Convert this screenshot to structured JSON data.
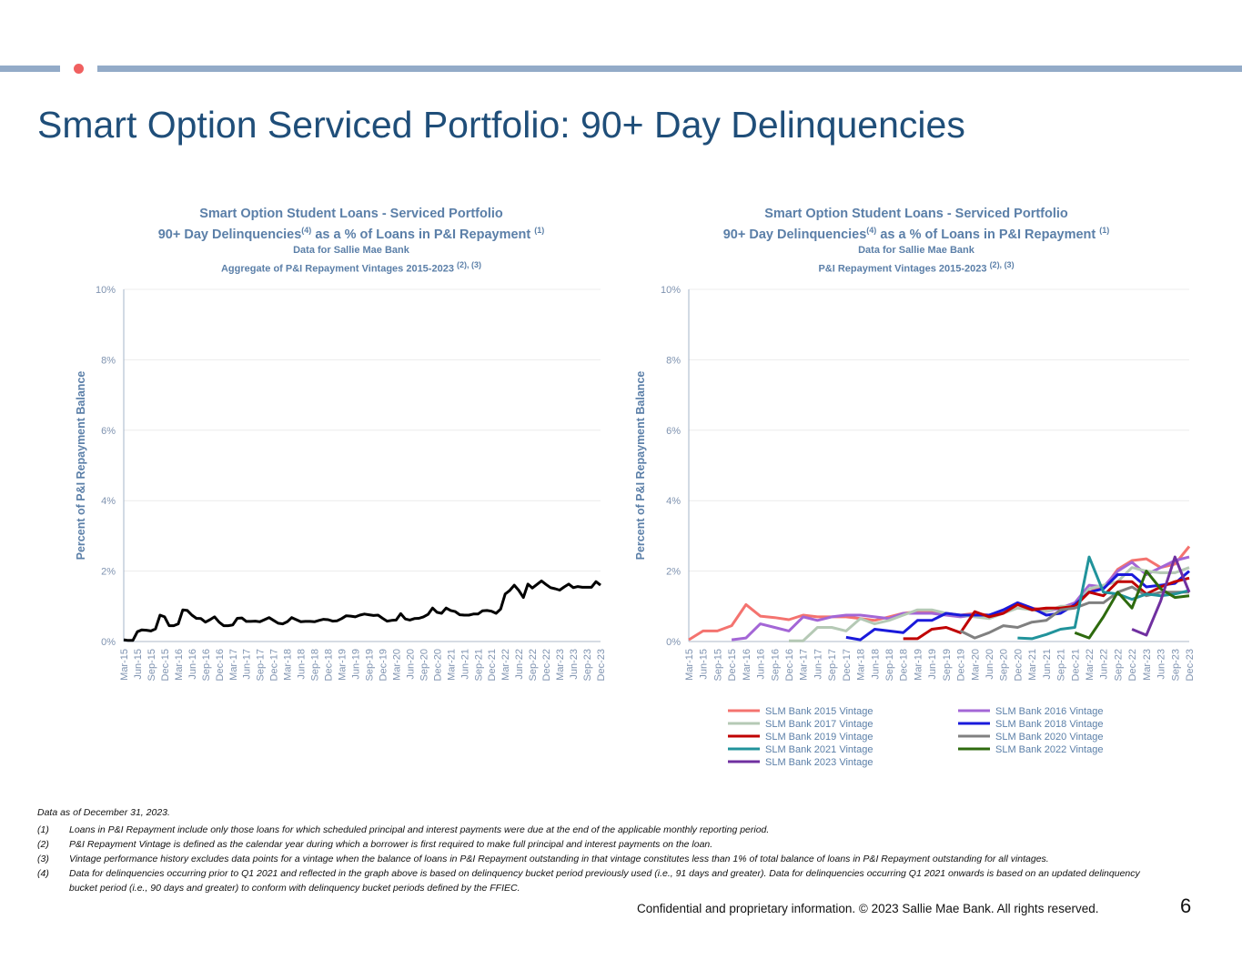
{
  "header": {
    "title": "Smart Option Serviced Portfolio: 90+ Day Delinquencies"
  },
  "colors": {
    "accent_bar": "#93abc8",
    "accent_dot": "#f06060",
    "title": "#1f4e79",
    "chart_text": "#5b7fa8"
  },
  "left_chart": {
    "line1": "Smart Option Student Loans - Serviced Portfolio",
    "line2a": "90+ Day Delinquencies",
    "line2sup": "(4)",
    "line2b": " as a % of Loans in P&I Repayment ",
    "line2sup2": "(1)",
    "line3": "Data for Sallie Mae Bank",
    "line4": "Aggregate of P&I Repayment Vintages 2015-2023 ",
    "line4sup": "(2), (3)"
  },
  "right_chart": {
    "line1": "Smart Option Student Loans - Serviced Portfolio",
    "line2a": "90+ Day Delinquencies",
    "line2sup": "(4)",
    "line2b": " as a % of Loans in P&I Repayment ",
    "line2sup2": "(1)",
    "line3": "Data for Sallie Mae Bank",
    "line4": "P&I Repayment Vintages 2015-2023 ",
    "line4sup": "(2), (3)"
  },
  "chart_data": [
    {
      "type": "line",
      "title": "Aggregate of P&I Repayment Vintages 2015-2023",
      "ylabel": "Percent of P&I Repayment  Balance",
      "xlabel": "",
      "ylim": [
        0,
        10
      ],
      "yticks": [
        "0%",
        "2%",
        "4%",
        "6%",
        "8%",
        "10%"
      ],
      "grid": true,
      "frequency": "monthly, Mar-15 to Dec-23",
      "xticks": [
        "Mar-15",
        "Jun-15",
        "Sep-15",
        "Dec-15",
        "Mar-16",
        "Jun-16",
        "Sep-16",
        "Dec-16",
        "Mar-17",
        "Jun-17",
        "Sep-17",
        "Dec-17",
        "Mar-18",
        "Jun-18",
        "Sep-18",
        "Dec-18",
        "Mar-19",
        "Jun-19",
        "Sep-19",
        "Dec-19",
        "Mar-20",
        "Jun-20",
        "Sep-20",
        "Dec-20",
        "Mar-21",
        "Jun-21",
        "Sep-21",
        "Dec-21",
        "Mar-22",
        "Jun-22",
        "Sep-22",
        "Dec-22",
        "Mar-23",
        "Jun-23",
        "Sep-23",
        "Dec-23"
      ],
      "series": [
        {
          "name": "Aggregate",
          "color": "#000000",
          "values": [
            0.05,
            0.03,
            0.03,
            0.28,
            0.33,
            0.32,
            0.3,
            0.36,
            0.75,
            0.7,
            0.45,
            0.45,
            0.5,
            0.9,
            0.88,
            0.75,
            0.66,
            0.65,
            0.55,
            0.62,
            0.7,
            0.55,
            0.45,
            0.45,
            0.47,
            0.66,
            0.67,
            0.57,
            0.57,
            0.58,
            0.56,
            0.62,
            0.68,
            0.6,
            0.52,
            0.5,
            0.56,
            0.68,
            0.62,
            0.56,
            0.57,
            0.57,
            0.56,
            0.6,
            0.63,
            0.62,
            0.58,
            0.59,
            0.65,
            0.73,
            0.72,
            0.7,
            0.75,
            0.78,
            0.76,
            0.74,
            0.75,
            0.66,
            0.58,
            0.6,
            0.61,
            0.79,
            0.64,
            0.61,
            0.65,
            0.66,
            0.7,
            0.77,
            0.95,
            0.83,
            0.8,
            0.95,
            0.88,
            0.85,
            0.76,
            0.75,
            0.75,
            0.78,
            0.78,
            0.87,
            0.88,
            0.86,
            0.8,
            0.92,
            1.35,
            1.45,
            1.6,
            1.45,
            1.25,
            1.63,
            1.52,
            1.62,
            1.72,
            1.62,
            1.53,
            1.5,
            1.46,
            1.55,
            1.63,
            1.53,
            1.56,
            1.54,
            1.54,
            1.54,
            1.7,
            1.6
          ]
        }
      ]
    },
    {
      "type": "line",
      "title": "P&I Repayment Vintages 2015-2023",
      "ylabel": "Percent of P&I Repayment  Balance",
      "xlabel": "",
      "ylim": [
        0,
        10
      ],
      "yticks": [
        "0%",
        "2%",
        "4%",
        "6%",
        "8%",
        "10%"
      ],
      "grid": true,
      "frequency": "quarterly approximation",
      "legend": "bottom",
      "xticks": [
        "Mar-15",
        "Jun-15",
        "Sep-15",
        "Dec-15",
        "Mar-16",
        "Jun-16",
        "Sep-16",
        "Dec-16",
        "Mar-17",
        "Jun-17",
        "Sep-17",
        "Dec-17",
        "Mar-18",
        "Jun-18",
        "Sep-18",
        "Dec-18",
        "Mar-19",
        "Jun-19",
        "Sep-19",
        "Dec-19",
        "Mar-20",
        "Jun-20",
        "Sep-20",
        "Dec-20",
        "Mar-21",
        "Jun-21",
        "Sep-21",
        "Dec-21",
        "Mar-22",
        "Jun-22",
        "Sep-22",
        "Dec-22",
        "Mar-23",
        "Jun-23",
        "Sep-23",
        "Dec-23"
      ],
      "series": [
        {
          "name": "SLM Bank 2015 Vintage",
          "color": "#f4736f",
          "values": [
            0.05,
            0.3,
            0.3,
            0.45,
            1.05,
            0.72,
            0.68,
            0.62,
            0.75,
            0.7,
            0.7,
            0.7,
            0.65,
            0.6,
            0.7,
            0.8,
            0.85,
            0.85,
            0.8,
            0.75,
            0.8,
            0.75,
            0.85,
            1.1,
            0.95,
            0.9,
            0.95,
            1.05,
            1.5,
            1.5,
            2.05,
            2.3,
            2.35,
            2.1,
            2.2,
            2.7
          ]
        },
        {
          "name": "SLM Bank 2016 Vintage",
          "color": "#a366d6",
          "values": [
            null,
            null,
            null,
            0.05,
            0.1,
            0.5,
            0.4,
            0.3,
            0.7,
            0.6,
            0.7,
            0.75,
            0.75,
            0.7,
            0.65,
            0.8,
            0.8,
            0.8,
            0.75,
            0.7,
            0.75,
            0.7,
            0.85,
            1.05,
            0.9,
            0.85,
            0.95,
            1.1,
            1.6,
            1.55,
            2.0,
            2.25,
            1.9,
            2.1,
            2.3,
            2.4
          ]
        },
        {
          "name": "SLM Bank 2017 Vintage",
          "color": "#b5c9b5",
          "values": [
            null,
            null,
            null,
            null,
            null,
            null,
            null,
            0.02,
            0.02,
            0.4,
            0.4,
            0.3,
            0.65,
            0.5,
            0.6,
            0.75,
            0.9,
            0.9,
            0.8,
            0.75,
            0.7,
            0.65,
            0.8,
            0.95,
            0.9,
            0.85,
            1.0,
            1.0,
            1.5,
            1.6,
            1.7,
            2.1,
            2.0,
            1.95,
            1.95,
            2.1
          ]
        },
        {
          "name": "SLM Bank 2018 Vintage",
          "color": "#1a1adb",
          "values": [
            null,
            null,
            null,
            null,
            null,
            null,
            null,
            null,
            null,
            null,
            null,
            0.12,
            0.05,
            0.35,
            0.3,
            0.25,
            0.6,
            0.6,
            0.8,
            0.75,
            0.75,
            0.75,
            0.9,
            1.1,
            0.95,
            0.75,
            0.8,
            1.05,
            1.4,
            1.5,
            1.9,
            1.9,
            1.55,
            1.6,
            1.65,
            2.0
          ]
        },
        {
          "name": "SLM Bank 2019 Vintage",
          "color": "#c00000",
          "values": [
            null,
            null,
            null,
            null,
            null,
            null,
            null,
            null,
            null,
            null,
            null,
            null,
            null,
            null,
            null,
            0.08,
            0.08,
            0.35,
            0.4,
            0.25,
            0.85,
            0.7,
            0.8,
            1.05,
            0.9,
            0.95,
            0.95,
            1.0,
            1.4,
            1.3,
            1.7,
            1.7,
            1.35,
            1.55,
            1.7,
            1.8
          ]
        },
        {
          "name": "SLM Bank 2020 Vintage",
          "color": "#808080",
          "values": [
            null,
            null,
            null,
            null,
            null,
            null,
            null,
            null,
            null,
            null,
            null,
            null,
            null,
            null,
            null,
            null,
            null,
            null,
            null,
            0.3,
            0.1,
            0.25,
            0.45,
            0.4,
            0.55,
            0.6,
            0.9,
            0.95,
            1.1,
            1.1,
            1.4,
            1.55,
            1.3,
            1.4,
            1.4,
            1.4
          ]
        },
        {
          "name": "SLM Bank 2021 Vintage",
          "color": "#21939b",
          "values": [
            null,
            null,
            null,
            null,
            null,
            null,
            null,
            null,
            null,
            null,
            null,
            null,
            null,
            null,
            null,
            null,
            null,
            null,
            null,
            null,
            null,
            null,
            null,
            0.1,
            0.08,
            0.2,
            0.35,
            0.4,
            2.4,
            1.4,
            1.35,
            1.2,
            1.35,
            1.3,
            1.35,
            1.45
          ]
        },
        {
          "name": "SLM Bank 2022 Vintage",
          "color": "#2e6a0e",
          "values": [
            null,
            null,
            null,
            null,
            null,
            null,
            null,
            null,
            null,
            null,
            null,
            null,
            null,
            null,
            null,
            null,
            null,
            null,
            null,
            null,
            null,
            null,
            null,
            null,
            null,
            null,
            null,
            0.25,
            0.1,
            0.7,
            1.4,
            0.95,
            2.0,
            1.5,
            1.25,
            1.3
          ]
        },
        {
          "name": "SLM Bank 2023 Vintage",
          "color": "#7030a0",
          "values": [
            null,
            null,
            null,
            null,
            null,
            null,
            null,
            null,
            null,
            null,
            null,
            null,
            null,
            null,
            null,
            null,
            null,
            null,
            null,
            null,
            null,
            null,
            null,
            null,
            null,
            null,
            null,
            null,
            null,
            null,
            null,
            0.35,
            0.18,
            1.15,
            2.4,
            1.4
          ]
        }
      ]
    }
  ],
  "notes": {
    "asof": "Data as of December 31, 2023.",
    "items": [
      {
        "num": "(1)",
        "text": "Loans in P&I Repayment include only those loans for which scheduled principal and interest payments were due at the end of the applicable monthly reporting period."
      },
      {
        "num": "(2)",
        "text": "P&I Repayment Vintage is defined as the calendar year during which a borrower is first required to make full principal and interest payments on the loan."
      },
      {
        "num": "(3)",
        "text": "Vintage performance history excludes data points for a vintage when the balance of loans in P&I Repayment outstanding in that vintage constitutes less than 1% of total balance of loans in P&I Repayment outstanding for all vintages."
      },
      {
        "num": "(4)",
        "text": "Data for delinquencies occurring prior to Q1 2021 and reflected in the graph above is based on delinquency bucket period previously used (i.e., 91 days and greater).  Data for delinquencies occurring Q1 2021 onwards is based on an updated delinquency bucket period (i.e., 90 days and greater) to conform with delinquency bucket periods defined by the FFIEC."
      }
    ]
  },
  "footer": {
    "confidential": "Confidential and proprietary information. © 2023 Sallie Mae Bank. All rights reserved.",
    "page_number": "6"
  }
}
